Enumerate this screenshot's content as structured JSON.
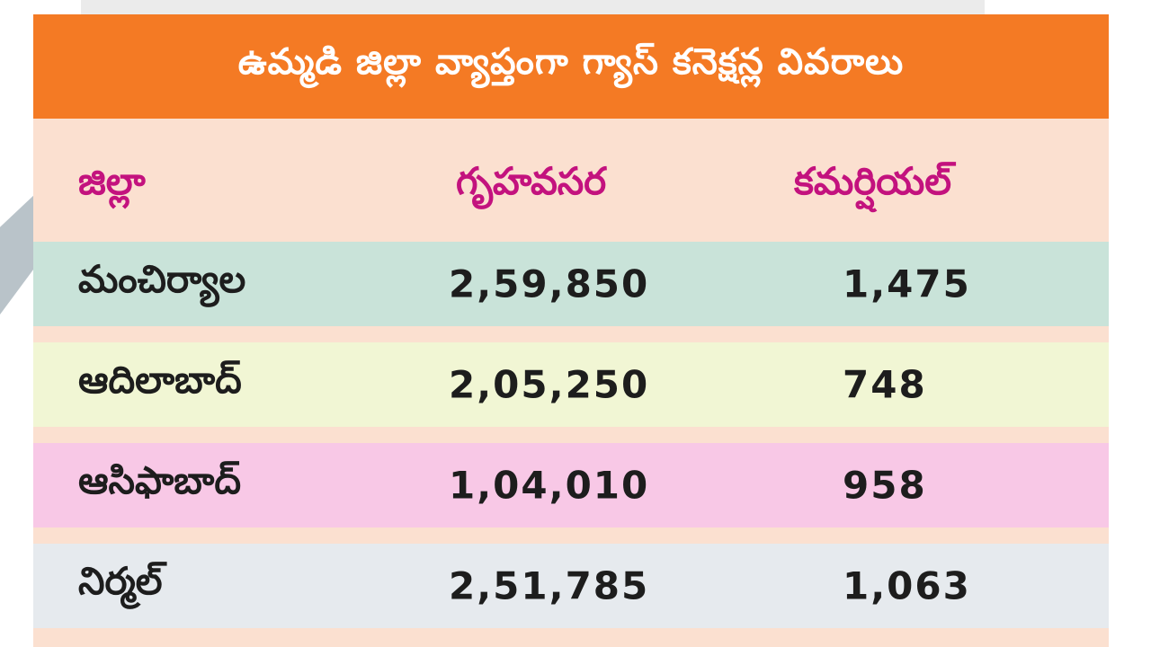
{
  "title": "ఉమ్మడి జిల్లా వ్యాప్తంగా గ్యాస్ కనెక్షన్ల వివరాలు",
  "headers": {
    "district": "జిల్లా",
    "domestic": "గృహవసర",
    "commercial": "కమర్షియల్"
  },
  "rows": [
    {
      "district": "మంచిర్యాల",
      "domestic": "2,59,850",
      "commercial": "1,475",
      "color": "#c9e3d9"
    },
    {
      "district": "ఆదిలాబాద్",
      "domestic": "2,05,250",
      "commercial": "748",
      "color": "#f1f6d4"
    },
    {
      "district": "ఆసిఫాబాద్",
      "domestic": "1,04,010",
      "commercial": "958",
      "color": "#f8c8e6"
    },
    {
      "district": "నిర్మల్",
      "domestic": "2,51,785",
      "commercial": "1,063",
      "color": "#e6eaee"
    }
  ],
  "colors": {
    "title_bar": "#f47a24",
    "card_background": "#fbe0d0",
    "header_text": "#c3127e",
    "body_text": "#1d1d1d"
  }
}
